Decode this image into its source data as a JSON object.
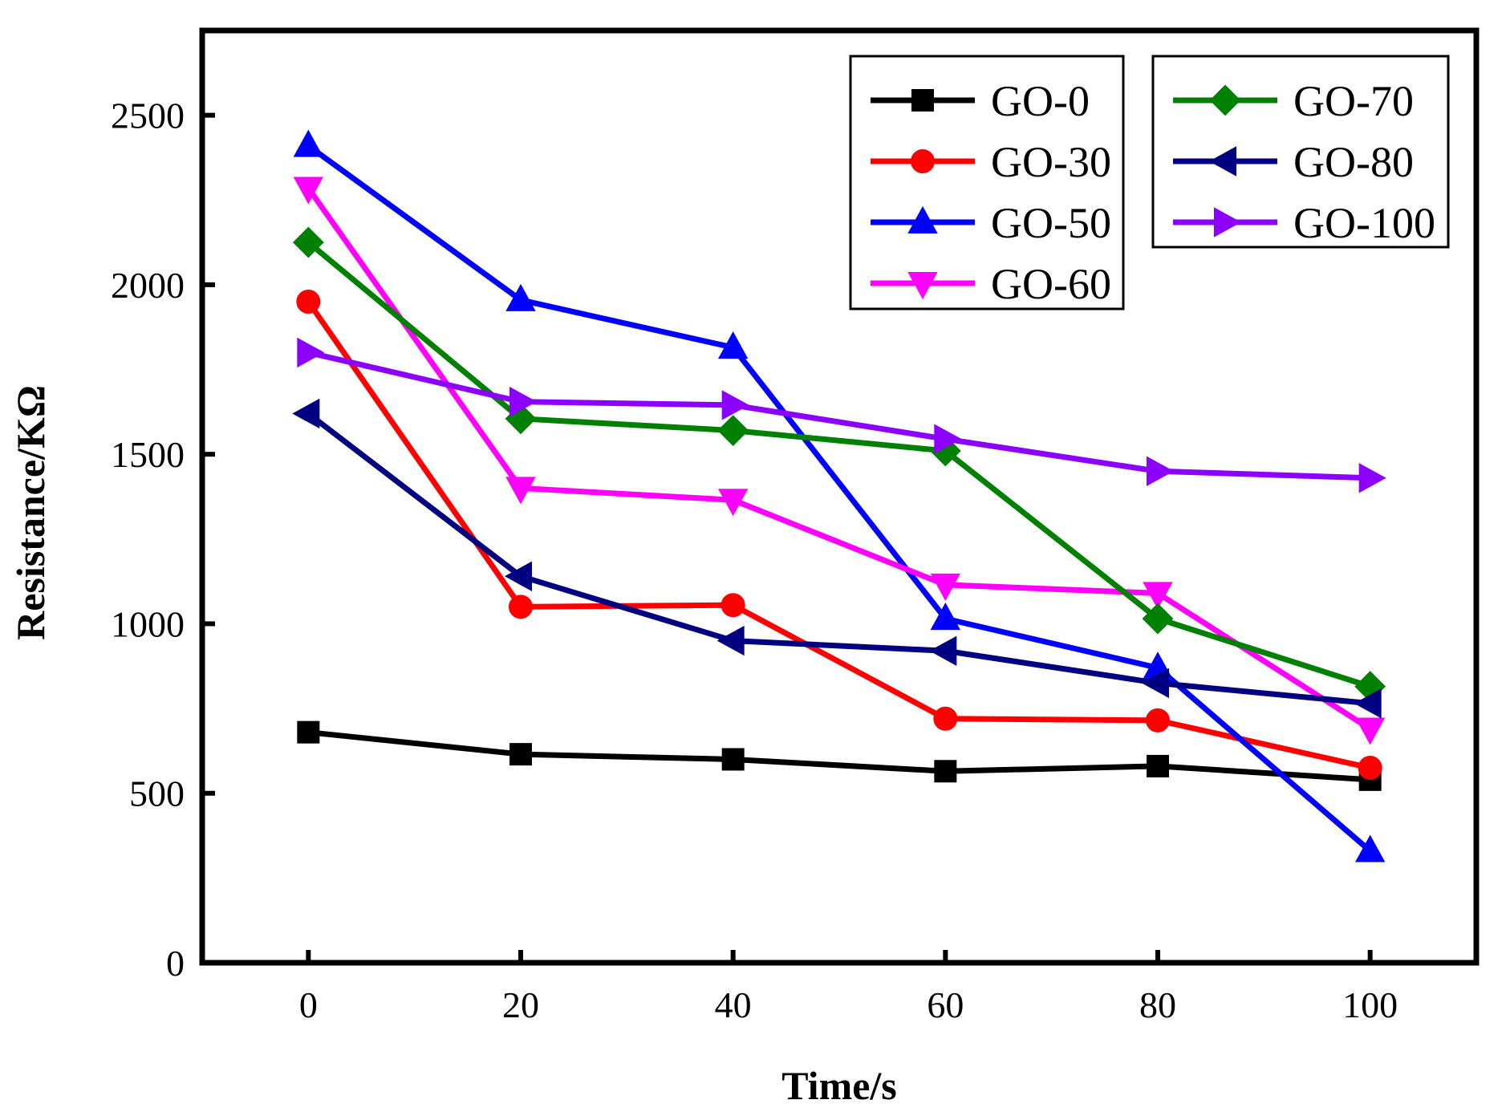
{
  "chart_data": {
    "type": "line",
    "title": "",
    "xlabel": "Time/s",
    "ylabel": "Resistance/KΩ",
    "x": [
      0,
      20,
      40,
      60,
      80,
      100
    ],
    "x_ticks": [
      "0",
      "20",
      "40",
      "60",
      "80",
      "100"
    ],
    "y_ticks": [
      "0",
      "500",
      "1000",
      "1500",
      "2000",
      "2500"
    ],
    "y_tick_values": [
      0,
      500,
      1000,
      1500,
      2000,
      2500
    ],
    "xlim": [
      -10,
      110
    ],
    "ylim": [
      0,
      2750
    ],
    "grid": false,
    "legend_position": "top-right",
    "series": [
      {
        "name": "GO-0",
        "color": "#000000",
        "marker": "square",
        "values": [
          680,
          615,
          600,
          565,
          580,
          540
        ]
      },
      {
        "name": "GO-30",
        "color": "#ff0000",
        "marker": "circle",
        "values": [
          1950,
          1050,
          1055,
          720,
          715,
          575
        ]
      },
      {
        "name": "GO-50",
        "color": "#0000ff",
        "marker": "triangle-up",
        "values": [
          2410,
          1955,
          1815,
          1015,
          870,
          330
        ]
      },
      {
        "name": "GO-60",
        "color": "#ff00ff",
        "marker": "triangle-down",
        "values": [
          2285,
          1400,
          1365,
          1115,
          1090,
          690
        ]
      },
      {
        "name": "GO-70",
        "color": "#008000",
        "marker": "diamond",
        "values": [
          2125,
          1605,
          1570,
          1510,
          1015,
          815
        ]
      },
      {
        "name": "GO-80",
        "color": "#000080",
        "marker": "triangle-left",
        "values": [
          1620,
          1140,
          950,
          920,
          825,
          765
        ]
      },
      {
        "name": "GO-100",
        "color": "#8b00ff",
        "marker": "triangle-right",
        "values": [
          1800,
          1655,
          1645,
          1545,
          1450,
          1430
        ]
      }
    ]
  }
}
